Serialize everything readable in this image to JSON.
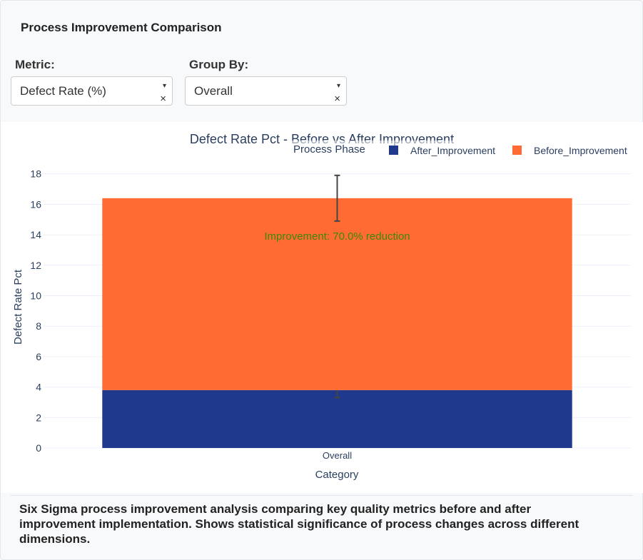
{
  "card": {
    "title": "Process Improvement Comparison",
    "footnote": "Six Sigma process improvement analysis comparing key quality metrics before and after improvement implementation. Shows statistical significance of process changes across different dimensions."
  },
  "controls": {
    "metric": {
      "label": "Metric:",
      "value": "Defect Rate (%)",
      "caret_icon": "▾",
      "clear_icon": "×"
    },
    "group_by": {
      "label": "Group By:",
      "value": "Overall",
      "caret_icon": "▾",
      "clear_icon": "×"
    }
  },
  "chart_data": {
    "type": "bar",
    "barmode": "stack",
    "title": "Defect Rate Pct - Before vs After Improvement",
    "xlabel": "Category",
    "ylabel": "Defect Rate Pct",
    "categories": [
      "Overall"
    ],
    "ylim": [
      0,
      18.5
    ],
    "yticks": [
      0,
      2,
      4,
      6,
      8,
      10,
      12,
      14,
      16,
      18
    ],
    "grid": true,
    "legend": {
      "title": "Process Phase",
      "placement": "top-right",
      "orientation": "horizontal"
    },
    "series": [
      {
        "name": "After_Improvement",
        "values": [
          3.8
        ],
        "error": [
          0.5
        ],
        "color": "#1f3a8c"
      },
      {
        "name": "Before_Improvement",
        "values": [
          12.6
        ],
        "error": [
          1.5
        ],
        "color": "#ff6b33"
      }
    ],
    "annotations": [
      {
        "text": "Improvement: 70.0% reduction",
        "x": "Overall",
        "y": 13.9,
        "color": "#3a8a0a"
      }
    ]
  }
}
